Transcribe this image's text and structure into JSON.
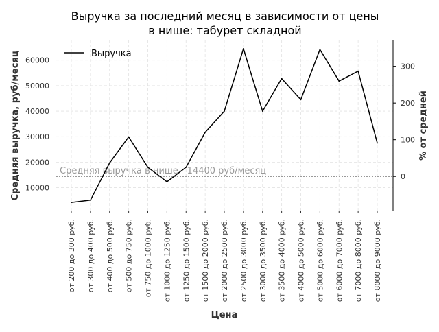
{
  "chart_data": {
    "type": "line",
    "title_line1": "Выручка за последний месяц в зависимости от цены",
    "title_line2": "в нише: табурет складной",
    "xlabel": "Цена",
    "ylabel": "Средняя выручка, руб/месяц",
    "y2label": "% от средней",
    "categories": [
      "от 200 до 300 руб.",
      "от 300 до 400 руб.",
      "от 400 до 500 руб.",
      "от 500 до 750 руб.",
      "от 750 до 1000 руб.",
      "от 1000 до 1250 руб.",
      "от 1250 до 1500 руб.",
      "от 1500 до 2000 руб.",
      "от 2000 до 2500 руб.",
      "от 2500 до 3000 руб.",
      "от 3000 до 3500 руб.",
      "от 3500 до 4000 руб.",
      "от 4000 до 5000 руб.",
      "от 5000 до 6000 руб.",
      "от 6000 до 7000 руб.",
      "от 7000 до 8000 руб.",
      "от 8000 до 9000 руб."
    ],
    "series": [
      {
        "name": "Выручка",
        "color": "#000000",
        "values": [
          4200,
          5100,
          19700,
          29900,
          18000,
          12300,
          18000,
          31700,
          40000,
          64500,
          40000,
          52800,
          44500,
          64200,
          51800,
          55700,
          27500
        ]
      }
    ],
    "average": {
      "value": 14400,
      "label": "Средняя выручка в нише - 14400 руб/месяц",
      "color": "#999999"
    },
    "yticks": [
      10000,
      20000,
      30000,
      40000,
      50000,
      60000
    ],
    "ytick_labels": [
      "10000",
      "20000",
      "30000",
      "40000",
      "50000",
      "60000"
    ],
    "ylim": [
      1000,
      68000
    ],
    "y2ticks": [
      0,
      100,
      200,
      300
    ],
    "y2tick_labels": [
      "0",
      "100",
      "200",
      "300"
    ],
    "grid": true,
    "legend_position": "top-left"
  }
}
